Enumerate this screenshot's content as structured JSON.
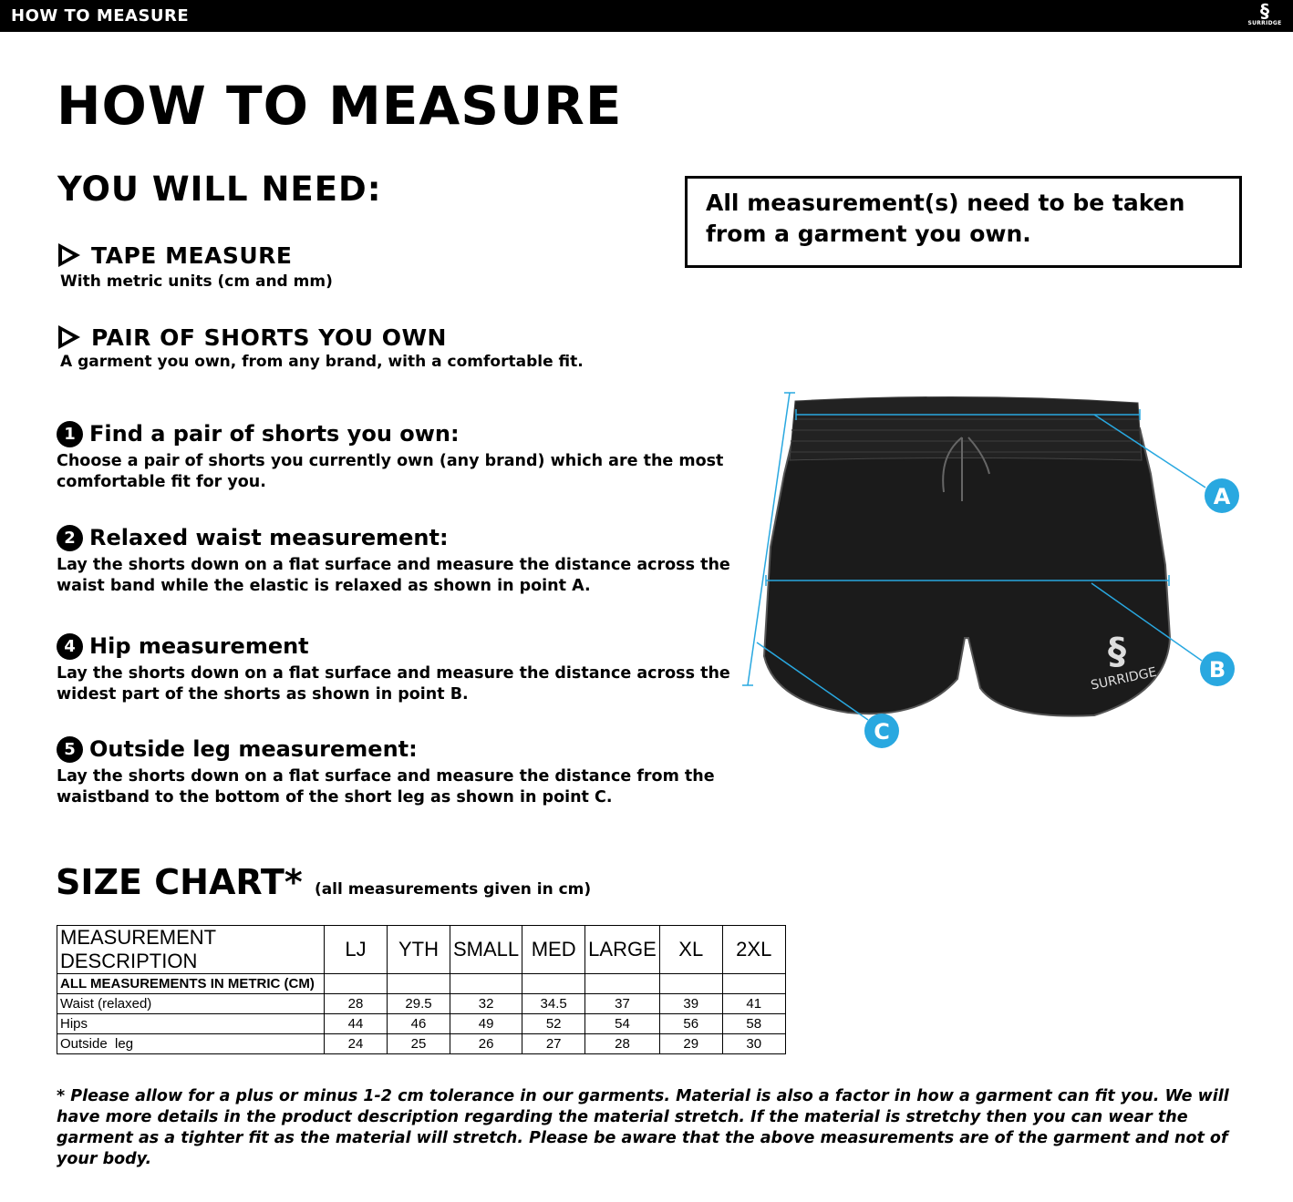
{
  "header": {
    "title": "HOW TO MEASURE",
    "logo_text": "SURRIDGE"
  },
  "page_title": "HOW TO MEASURE",
  "you_will_need": {
    "heading": "YOU WILL NEED:",
    "items": [
      {
        "title": "TAPE MEASURE",
        "desc": "With metric units (cm and mm)"
      },
      {
        "title": "PAIR OF SHORTS YOU OWN",
        "desc": "A garment you own, from any brand, with a comfortable fit."
      }
    ]
  },
  "note": "All measurement(s) need to be taken from a garment you own.",
  "steps": [
    {
      "num": "1",
      "title": "Find a pair of shorts you own:",
      "desc": "Choose a pair of shorts you currently own (any brand) which are the most comfortable fit for you."
    },
    {
      "num": "2",
      "title": "Relaxed waist measurement:",
      "desc": "Lay the shorts down on a flat surface and measure the distance across the waist band while the elastic is relaxed as shown in point A."
    },
    {
      "num": "4",
      "title": "Hip measurement",
      "desc": "Lay the shorts down on a flat surface and measure the distance across the widest part of the shorts as shown in point B."
    },
    {
      "num": "5",
      "title": "Outside leg measurement:",
      "desc": "Lay the shorts down on a flat surface and measure the distance from the waistband to the bottom of the short leg as shown in point C."
    }
  ],
  "diagram": {
    "labels": [
      "A",
      "B",
      "C"
    ],
    "garment_logo": "SURRIDGE",
    "accent": "#29a8e0"
  },
  "size_chart": {
    "title": "SIZE CHART*",
    "subtitle": "(all measurements given in cm)",
    "columns": [
      "MEASUREMENT DESCRIPTION",
      "LJ",
      "YTH",
      "SMALL",
      "MED",
      "LARGE",
      "XL",
      "2XL"
    ],
    "subheader": "ALL MEASUREMENTS IN METRIC (CM)",
    "rows": [
      {
        "label": "Waist (relaxed)",
        "values": [
          "28",
          "29.5",
          "32",
          "34.5",
          "37",
          "39",
          "41"
        ]
      },
      {
        "label": "Hips",
        "values": [
          "44",
          "46",
          "49",
          "52",
          "54",
          "56",
          "58"
        ]
      },
      {
        "label": "Outside  leg",
        "values": [
          "24",
          "25",
          "26",
          "27",
          "28",
          "29",
          "30"
        ]
      }
    ]
  },
  "footnote": "* Please allow for a plus or minus 1-2 cm tolerance in our garments. Material is also a factor in how a garment can fit you. We will have more details in the product description regarding the material stretch.  If the material is stretchy then you can wear the garment as a tighter fit as the material will stretch.  Please be aware that the above measurements are of the garment and not of your body."
}
